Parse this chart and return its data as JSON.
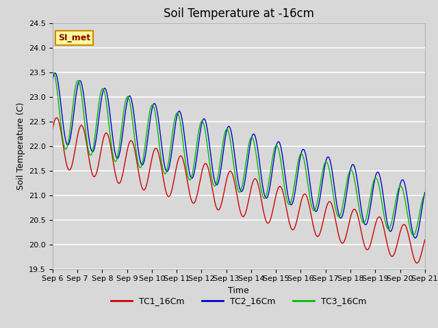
{
  "title": "Soil Temperature at -16cm",
  "xlabel": "Time",
  "ylabel": "Soil Temperature (C)",
  "ylim": [
    19.5,
    24.5
  ],
  "tc1_color": "#cc0000",
  "tc2_color": "#0000cc",
  "tc3_color": "#00bb00",
  "tc1_label": "TC1_16Cm",
  "tc2_label": "TC2_16Cm",
  "tc3_label": "TC3_16Cm",
  "bg_color": "#d8d8d8",
  "plot_bg_color": "#d8d8d8",
  "annotation_text": "SI_met",
  "annotation_bg": "#ffff99",
  "annotation_border": "#cc8800",
  "title_fontsize": 12,
  "axis_label_fontsize": 9,
  "tick_fontsize": 8,
  "legend_fontsize": 9,
  "grid_color": "#c0c0c0"
}
